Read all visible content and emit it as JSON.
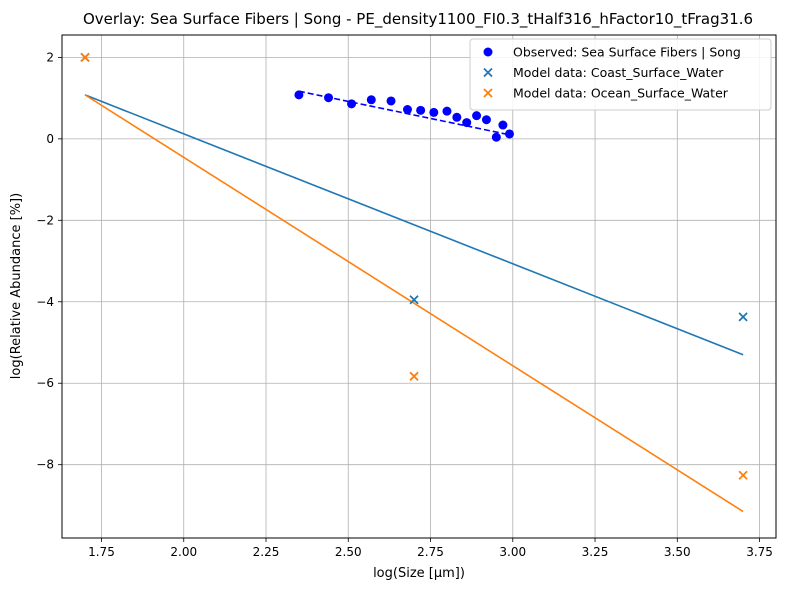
{
  "chart_data": {
    "type": "scatter",
    "title": "Overlay: Sea Surface Fibers | Song - PE_density1100_FI0.3_tHalf316_hFactor10_tFrag31.6",
    "xlabel": "log(Size [µm])",
    "ylabel": "log(Relative Abundance [%])",
    "xlim": [
      1.63,
      3.8
    ],
    "ylim": [
      -9.8,
      2.55
    ],
    "xticks": [
      "1.75",
      "2.00",
      "2.25",
      "2.50",
      "2.75",
      "3.00",
      "3.25",
      "3.50",
      "3.75"
    ],
    "xtick_values": [
      1.75,
      2.0,
      2.25,
      2.5,
      2.75,
      3.0,
      3.25,
      3.5,
      3.75
    ],
    "yticks": [
      "2",
      "0",
      "−2",
      "−4",
      "−6",
      "−8"
    ],
    "ytick_values": [
      2,
      0,
      -2,
      -4,
      -6,
      -8
    ],
    "grid": true,
    "legend_position": "top-right",
    "series": [
      {
        "name": "Observed: Sea Surface Fibers | Song",
        "kind": "scatter",
        "marker": "circle",
        "color": "#0000ff",
        "x": [
          2.35,
          2.44,
          2.51,
          2.57,
          2.63,
          2.68,
          2.72,
          2.76,
          2.8,
          2.83,
          2.86,
          2.89,
          2.92,
          2.95,
          2.97,
          2.99
        ],
        "y": [
          1.08,
          1.01,
          0.86,
          0.96,
          0.93,
          0.72,
          0.7,
          0.65,
          0.68,
          0.53,
          0.4,
          0.57,
          0.47,
          0.04,
          0.34,
          0.12
        ]
      },
      {
        "name": "Model data: Coast_Surface_Water",
        "kind": "scatter",
        "marker": "x",
        "color": "#1f77b4",
        "x": [
          1.7,
          2.7,
          3.7
        ],
        "y": [
          2.0,
          -3.95,
          -4.37
        ]
      },
      {
        "name": "Model data: Ocean_Surface_Water",
        "kind": "scatter",
        "marker": "x",
        "color": "#ff7f0e",
        "x": [
          1.7,
          2.7,
          3.7
        ],
        "y": [
          2.0,
          -5.83,
          -8.26
        ]
      }
    ],
    "fit_lines": [
      {
        "of": "Observed: Sea Surface Fibers | Song",
        "color": "#0000ff",
        "style": "dashed",
        "x": [
          2.35,
          2.99
        ],
        "y": [
          1.17,
          0.1
        ]
      },
      {
        "of": "Model data: Coast_Surface_Water",
        "color": "#1f77b4",
        "style": "solid",
        "x": [
          1.7,
          3.7
        ],
        "y": [
          1.08,
          -5.3
        ]
      },
      {
        "of": "Model data: Ocean_Surface_Water",
        "color": "#ff7f0e",
        "style": "solid",
        "x": [
          1.7,
          3.7
        ],
        "y": [
          1.08,
          -9.15
        ]
      }
    ]
  }
}
